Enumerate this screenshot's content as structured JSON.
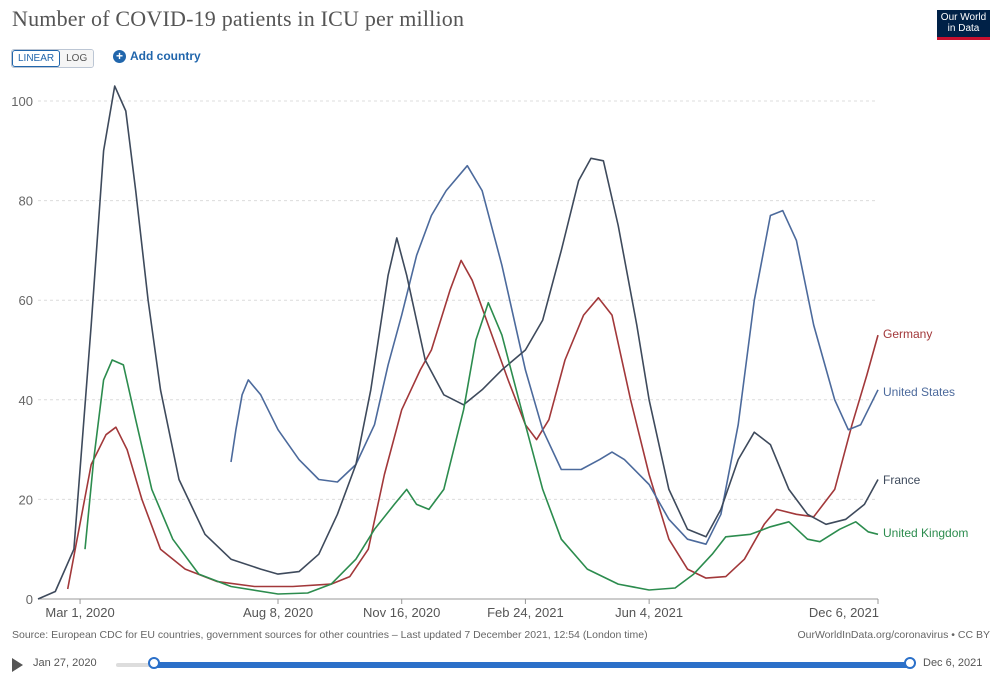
{
  "header": {
    "title": "Number of COVID-19 patients in ICU per million",
    "logo_line1": "Our World",
    "logo_line2": "in Data"
  },
  "controls": {
    "linear_label": "LINEAR",
    "log_label": "LOG",
    "add_country_label": "Add country"
  },
  "footer": {
    "source": "Source: European CDC for EU countries, government sources for other countries – Last updated 7 December 2021, 12:54 (London time)",
    "credit": "OurWorldInData.org/coronavirus • CC BY"
  },
  "timeline": {
    "start_label": "Jan 27, 2020",
    "end_label": "Dec 6, 2021"
  },
  "chart_data": {
    "type": "line",
    "title": "Number of COVID-19 patients in ICU per million",
    "ylim": [
      0,
      100
    ],
    "yticks": [
      0,
      20,
      40,
      60,
      80,
      100
    ],
    "xlim": [
      "2020-01-27",
      "2021-12-06"
    ],
    "xticks": [
      {
        "date": "2020-03-01",
        "label": "Mar 1, 2020"
      },
      {
        "date": "2020-08-08",
        "label": "Aug 8, 2020"
      },
      {
        "date": "2020-11-16",
        "label": "Nov 16, 2020"
      },
      {
        "date": "2021-02-24",
        "label": "Feb 24, 2021"
      },
      {
        "date": "2021-06-04",
        "label": "Jun 4, 2021"
      },
      {
        "date": "2021-12-06",
        "label": "Dec 6, 2021"
      }
    ],
    "grid": "horizontal dashed",
    "legend": "right, end of lines",
    "series": [
      {
        "name": "Germany",
        "color": "#a2383a",
        "points": [
          [
            "2020-02-20",
            2
          ],
          [
            "2020-03-10",
            27
          ],
          [
            "2020-03-22",
            33
          ],
          [
            "2020-03-30",
            34.5
          ],
          [
            "2020-04-08",
            30
          ],
          [
            "2020-04-20",
            20
          ],
          [
            "2020-05-05",
            10
          ],
          [
            "2020-05-25",
            6
          ],
          [
            "2020-06-20",
            3.5
          ],
          [
            "2020-07-20",
            2.5
          ],
          [
            "2020-08-20",
            2.5
          ],
          [
            "2020-09-20",
            3
          ],
          [
            "2020-10-05",
            4.5
          ],
          [
            "2020-10-20",
            10
          ],
          [
            "2020-11-02",
            25
          ],
          [
            "2020-11-16",
            38
          ],
          [
            "2020-12-01",
            46
          ],
          [
            "2020-12-10",
            50
          ],
          [
            "2020-12-25",
            62
          ],
          [
            "2021-01-03",
            68
          ],
          [
            "2021-01-12",
            64
          ],
          [
            "2021-01-25",
            55
          ],
          [
            "2021-02-10",
            44
          ],
          [
            "2021-02-24",
            35
          ],
          [
            "2021-03-05",
            32
          ],
          [
            "2021-03-15",
            36
          ],
          [
            "2021-03-28",
            48
          ],
          [
            "2021-04-12",
            57
          ],
          [
            "2021-04-24",
            60.5
          ],
          [
            "2021-05-05",
            57
          ],
          [
            "2021-05-20",
            40
          ],
          [
            "2021-06-04",
            25
          ],
          [
            "2021-06-20",
            12
          ],
          [
            "2021-07-05",
            6
          ],
          [
            "2021-07-20",
            4.2
          ],
          [
            "2021-08-05",
            4.5
          ],
          [
            "2021-08-20",
            8
          ],
          [
            "2021-09-05",
            15
          ],
          [
            "2021-09-15",
            18
          ],
          [
            "2021-10-01",
            17
          ],
          [
            "2021-10-15",
            16.5
          ],
          [
            "2021-11-01",
            22
          ],
          [
            "2021-11-15",
            35
          ],
          [
            "2021-11-27",
            45
          ],
          [
            "2021-12-06",
            53
          ]
        ]
      },
      {
        "name": "United States",
        "color": "#4c6a9c",
        "points": [
          [
            "2020-07-01",
            27.5
          ],
          [
            "2020-07-05",
            34
          ],
          [
            "2020-07-10",
            41
          ],
          [
            "2020-07-15",
            44
          ],
          [
            "2020-07-25",
            41
          ],
          [
            "2020-08-08",
            34
          ],
          [
            "2020-08-25",
            28
          ],
          [
            "2020-09-10",
            24
          ],
          [
            "2020-09-25",
            23.5
          ],
          [
            "2020-10-10",
            27
          ],
          [
            "2020-10-25",
            35
          ],
          [
            "2020-11-05",
            47
          ],
          [
            "2020-11-16",
            57
          ],
          [
            "2020-11-28",
            69
          ],
          [
            "2020-12-10",
            77
          ],
          [
            "2020-12-22",
            82
          ],
          [
            "2021-01-08",
            87
          ],
          [
            "2021-01-20",
            82
          ],
          [
            "2021-02-05",
            67
          ],
          [
            "2021-02-24",
            46
          ],
          [
            "2021-03-10",
            34
          ],
          [
            "2021-03-25",
            26
          ],
          [
            "2021-04-10",
            26
          ],
          [
            "2021-04-25",
            28
          ],
          [
            "2021-05-05",
            29.5
          ],
          [
            "2021-05-15",
            28
          ],
          [
            "2021-06-04",
            23
          ],
          [
            "2021-06-20",
            16
          ],
          [
            "2021-07-05",
            12
          ],
          [
            "2021-07-20",
            11
          ],
          [
            "2021-08-01",
            17
          ],
          [
            "2021-08-15",
            35
          ],
          [
            "2021-08-28",
            60
          ],
          [
            "2021-09-10",
            77
          ],
          [
            "2021-09-20",
            78
          ],
          [
            "2021-10-01",
            72
          ],
          [
            "2021-10-15",
            55
          ],
          [
            "2021-11-01",
            40
          ],
          [
            "2021-11-12",
            34
          ],
          [
            "2021-11-22",
            35
          ],
          [
            "2021-12-06",
            42
          ]
        ]
      },
      {
        "name": "France",
        "color": "#3e4a5c",
        "points": [
          [
            "2020-01-27",
            0
          ],
          [
            "2020-02-10",
            1.5
          ],
          [
            "2020-02-25",
            10
          ],
          [
            "2020-03-10",
            55
          ],
          [
            "2020-03-20",
            90
          ],
          [
            "2020-03-29",
            103
          ],
          [
            "2020-04-07",
            98
          ],
          [
            "2020-04-15",
            82
          ],
          [
            "2020-04-25",
            60
          ],
          [
            "2020-05-05",
            42
          ],
          [
            "2020-05-20",
            24
          ],
          [
            "2020-06-10",
            13
          ],
          [
            "2020-07-01",
            8
          ],
          [
            "2020-07-25",
            6
          ],
          [
            "2020-08-08",
            5
          ],
          [
            "2020-08-25",
            5.5
          ],
          [
            "2020-09-10",
            9
          ],
          [
            "2020-09-25",
            17
          ],
          [
            "2020-10-10",
            27
          ],
          [
            "2020-10-22",
            42
          ],
          [
            "2020-11-05",
            65
          ],
          [
            "2020-11-12",
            72.5
          ],
          [
            "2020-11-20",
            65
          ],
          [
            "2020-12-05",
            48
          ],
          [
            "2020-12-20",
            41
          ],
          [
            "2021-01-05",
            39
          ],
          [
            "2021-01-20",
            42
          ],
          [
            "2021-02-05",
            46
          ],
          [
            "2021-02-24",
            50
          ],
          [
            "2021-03-10",
            56
          ],
          [
            "2021-03-25",
            70
          ],
          [
            "2021-04-08",
            84
          ],
          [
            "2021-04-18",
            88.5
          ],
          [
            "2021-04-28",
            88
          ],
          [
            "2021-05-10",
            75
          ],
          [
            "2021-05-25",
            55
          ],
          [
            "2021-06-04",
            40
          ],
          [
            "2021-06-20",
            22
          ],
          [
            "2021-07-05",
            14
          ],
          [
            "2021-07-20",
            12.5
          ],
          [
            "2021-08-01",
            18
          ],
          [
            "2021-08-15",
            28
          ],
          [
            "2021-08-28",
            33.5
          ],
          [
            "2021-09-10",
            31
          ],
          [
            "2021-09-25",
            22
          ],
          [
            "2021-10-10",
            17
          ],
          [
            "2021-10-25",
            15
          ],
          [
            "2021-11-10",
            16
          ],
          [
            "2021-11-25",
            19
          ],
          [
            "2021-12-06",
            24
          ]
        ]
      },
      {
        "name": "United Kingdom",
        "color": "#2c8c4e",
        "points": [
          [
            "2020-03-05",
            10
          ],
          [
            "2020-03-12",
            28
          ],
          [
            "2020-03-20",
            44
          ],
          [
            "2020-03-27",
            48
          ],
          [
            "2020-04-05",
            47
          ],
          [
            "2020-04-15",
            36
          ],
          [
            "2020-04-28",
            22
          ],
          [
            "2020-05-15",
            12
          ],
          [
            "2020-06-05",
            5
          ],
          [
            "2020-07-01",
            2.5
          ],
          [
            "2020-08-08",
            1
          ],
          [
            "2020-09-01",
            1.2
          ],
          [
            "2020-09-20",
            3
          ],
          [
            "2020-10-10",
            8
          ],
          [
            "2020-10-25",
            14
          ],
          [
            "2020-11-10",
            19
          ],
          [
            "2020-11-20",
            22
          ],
          [
            "2020-11-28",
            19
          ],
          [
            "2020-12-08",
            18
          ],
          [
            "2020-12-20",
            22
          ],
          [
            "2021-01-05",
            38
          ],
          [
            "2021-01-15",
            52
          ],
          [
            "2021-01-25",
            59.5
          ],
          [
            "2021-02-05",
            53
          ],
          [
            "2021-02-24",
            35
          ],
          [
            "2021-03-10",
            22
          ],
          [
            "2021-03-25",
            12
          ],
          [
            "2021-04-15",
            6
          ],
          [
            "2021-05-10",
            3
          ],
          [
            "2021-06-04",
            1.8
          ],
          [
            "2021-06-25",
            2.2
          ],
          [
            "2021-07-10",
            5
          ],
          [
            "2021-07-25",
            9
          ],
          [
            "2021-08-05",
            12.5
          ],
          [
            "2021-08-25",
            13
          ],
          [
            "2021-09-10",
            14.5
          ],
          [
            "2021-09-25",
            15.5
          ],
          [
            "2021-10-10",
            12
          ],
          [
            "2021-10-20",
            11.5
          ],
          [
            "2021-11-05",
            14
          ],
          [
            "2021-11-18",
            15.5
          ],
          [
            "2021-11-28",
            13.5
          ],
          [
            "2021-12-06",
            13
          ]
        ]
      }
    ]
  }
}
